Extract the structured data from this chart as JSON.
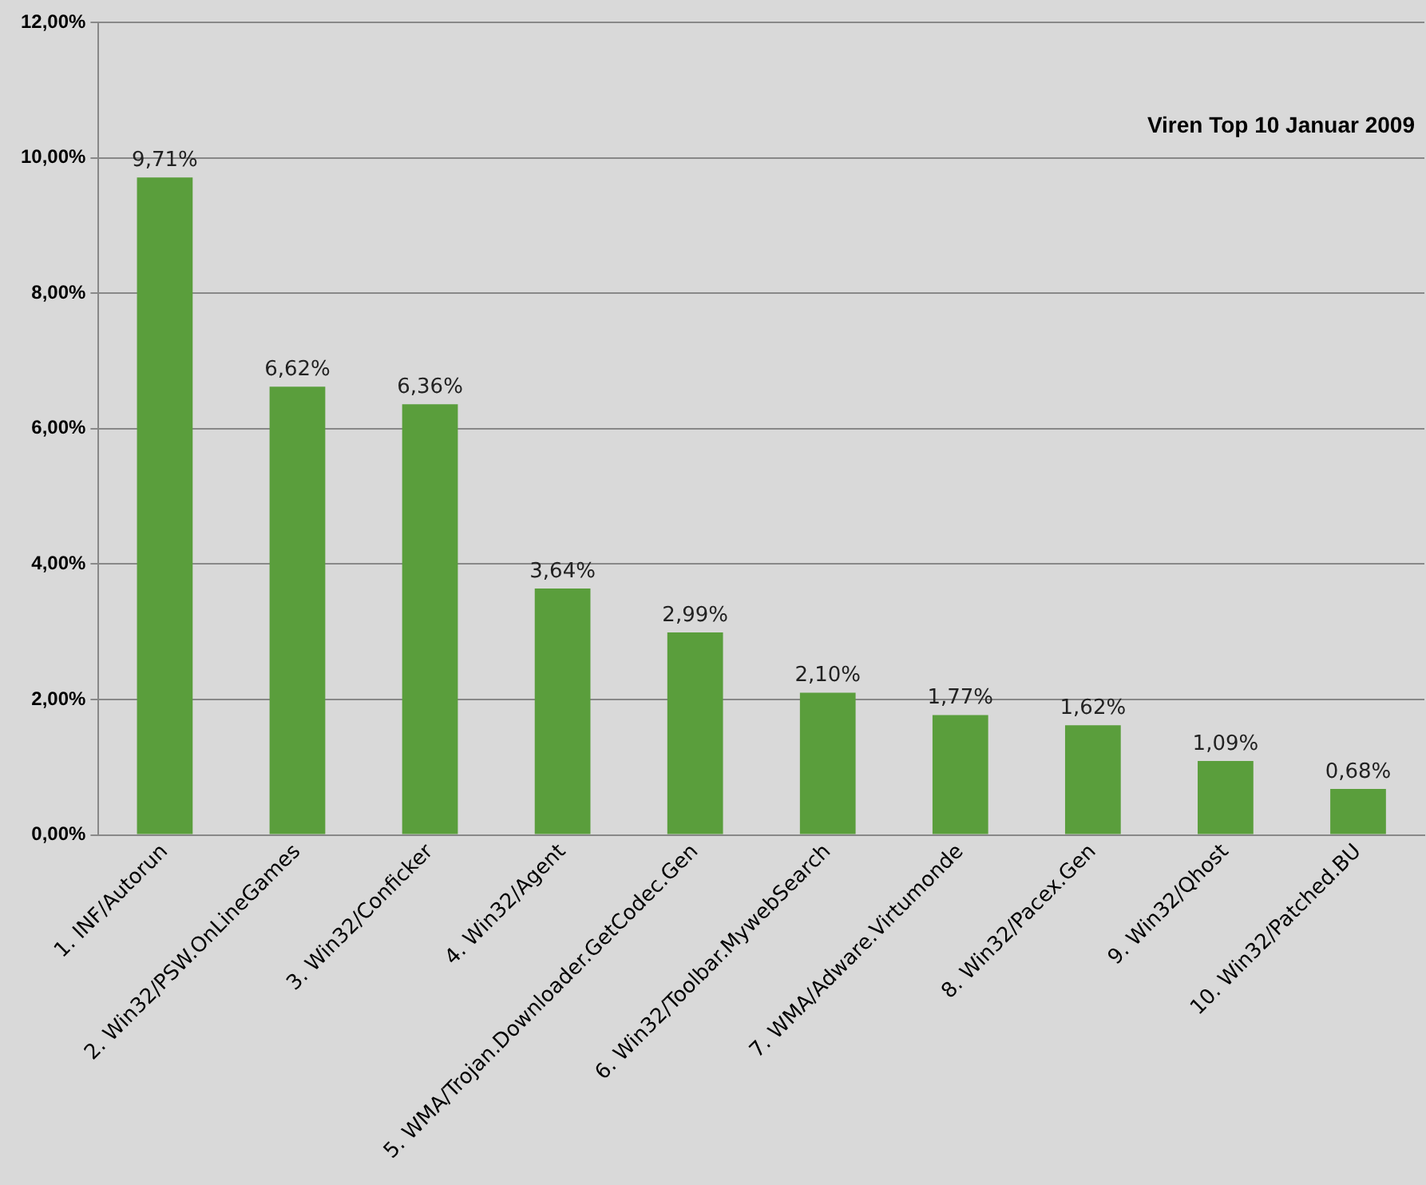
{
  "chart_data": {
    "type": "bar",
    "title": "Viren Top 10 Januar 2009",
    "categories": [
      "1. INF/Autorun",
      "2. Win32/PSW.OnLineGames",
      "3. Win32/Conficker",
      "4. Win32/Agent",
      "5. WMA/Trojan.Downloader.GetCodec.Gen",
      "6. Win32/Toolbar.MywebSearch",
      "7. WMA/Adware.Virtumonde",
      "8. Win32/Pacex.Gen",
      "9. Win32/Qhost",
      "10. Win32/Patched.BU"
    ],
    "values": [
      9.71,
      6.62,
      6.36,
      3.64,
      2.99,
      2.1,
      1.77,
      1.62,
      1.09,
      0.68
    ],
    "value_labels": [
      "9,71%",
      "6,62%",
      "6,36%",
      "3,64%",
      "2,99%",
      "2,10%",
      "1,77%",
      "1,62%",
      "1,09%",
      "0,68%"
    ],
    "color": "#5a9e3c",
    "ylim": [
      0,
      12
    ],
    "yticks": [
      {
        "value": 0,
        "label": "0,00%"
      },
      {
        "value": 2,
        "label": "2,00%"
      },
      {
        "value": 4,
        "label": "4,00%"
      },
      {
        "value": 6,
        "label": "6,00%"
      },
      {
        "value": 8,
        "label": "8,00%"
      },
      {
        "value": 10,
        "label": "10,00%"
      },
      {
        "value": 12,
        "label": "12,00%"
      }
    ],
    "grid": "y"
  }
}
